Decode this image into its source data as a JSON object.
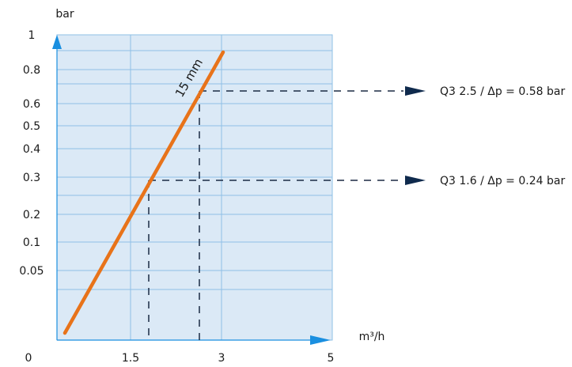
{
  "chart_data": {
    "type": "line",
    "title": "",
    "xlabel": "m³/h",
    "ylabel": "bar",
    "x_ticks": [
      {
        "value": 0,
        "label": "0"
      },
      {
        "value": 1.5,
        "label": "1.5"
      },
      {
        "value": 3,
        "label": "3"
      },
      {
        "value": 5,
        "label": "5"
      }
    ],
    "y_ticks": [
      {
        "value": 0.05,
        "label": "0.05"
      },
      {
        "value": 0.1,
        "label": "0.1"
      },
      {
        "value": 0.2,
        "label": "0.2"
      },
      {
        "value": 0.3,
        "label": "0.3"
      },
      {
        "value": 0.4,
        "label": "0.4"
      },
      {
        "value": 0.5,
        "label": "0.5"
      },
      {
        "value": 0.6,
        "label": "0.6"
      },
      {
        "value": 0.8,
        "label": "0.8"
      },
      {
        "value": 1,
        "label": "1"
      }
    ],
    "grid": true,
    "series": [
      {
        "name": "15 mm",
        "color": "#e8731a",
        "points": [
          {
            "x": 0.55,
            "y": 0.02
          },
          {
            "x": 3.0,
            "y": 0.9
          }
        ]
      }
    ],
    "annotations": [
      {
        "text": "Q3 1.6 / Δp = 0.24 bar",
        "x": 1.6,
        "y": 0.24
      },
      {
        "text": "Q3 2.5 / Δp = 0.58 bar",
        "x": 2.5,
        "y": 0.58
      }
    ],
    "colors": {
      "plot_background": "#dbe9f6",
      "grid": "#8fc0e6",
      "axis_arrow": "#1a8fe0",
      "guide_line": "#1b2a44",
      "guide_arrow": "#0f2a4d"
    }
  }
}
